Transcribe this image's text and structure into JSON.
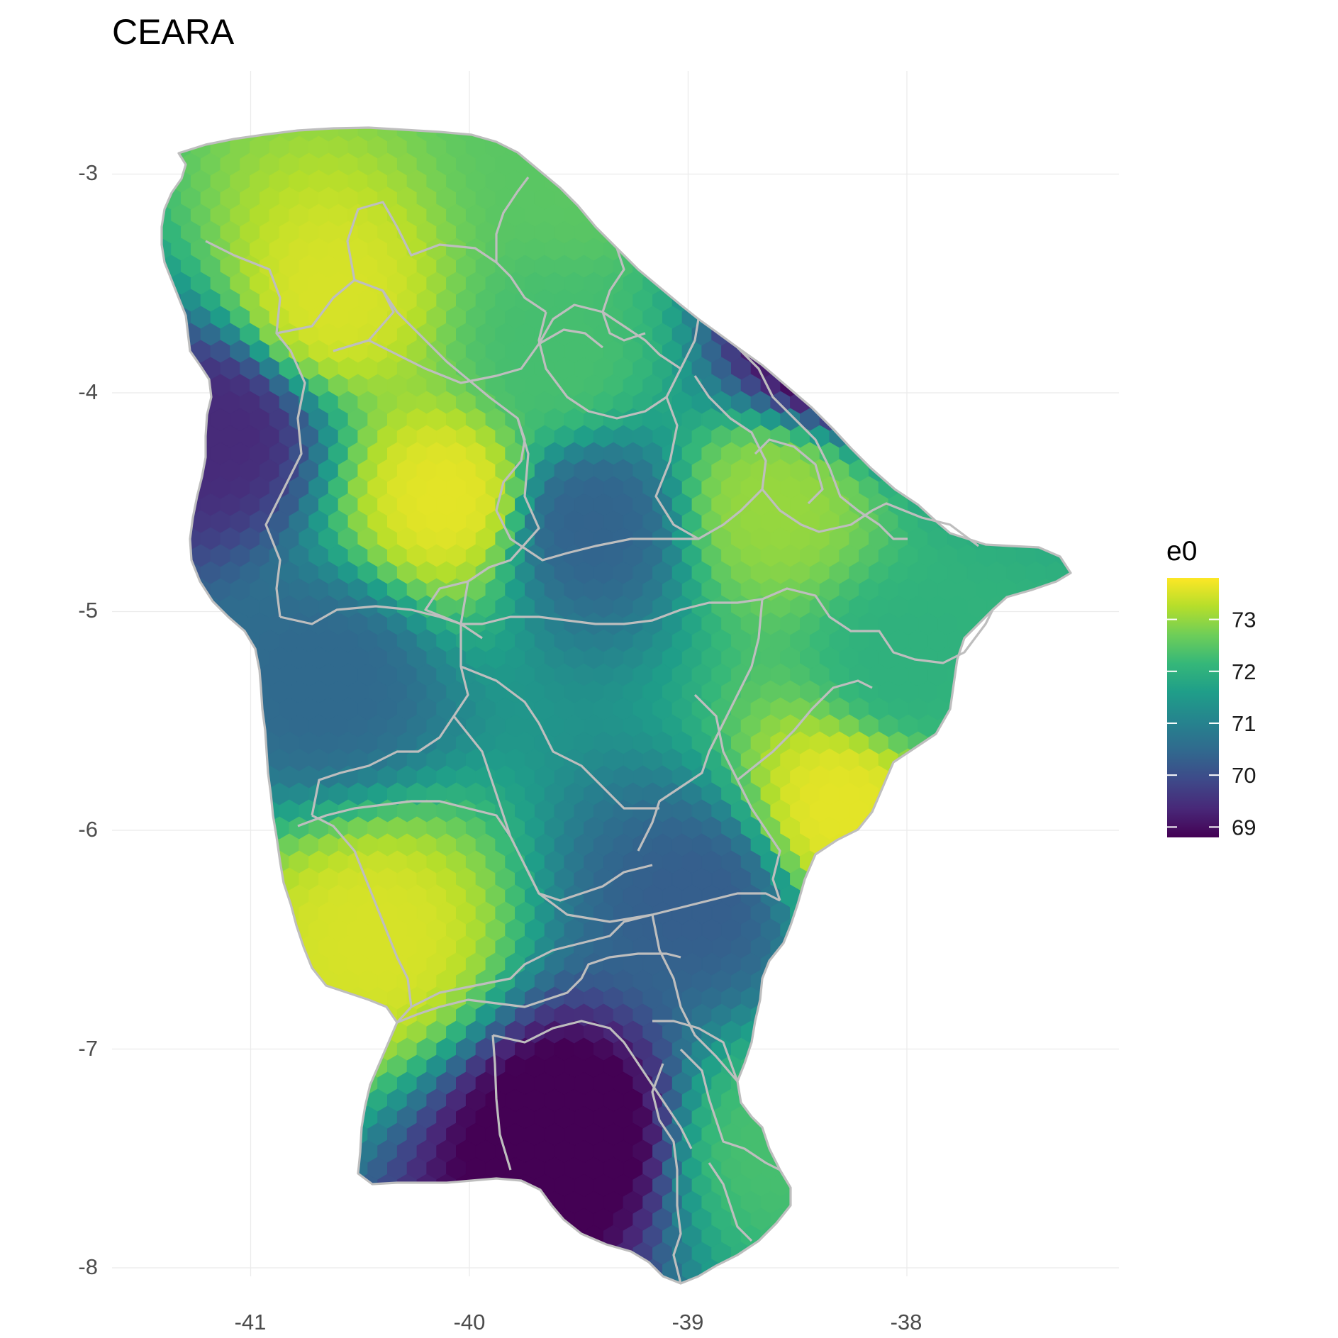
{
  "map": {
    "title": "CEARA",
    "fill_variable": "e0",
    "x_axis": {
      "ticks": [
        -41,
        -40,
        -39,
        -38
      ],
      "tick_labels": [
        "-41",
        "-40",
        "-39",
        "-38"
      ],
      "range": [
        -41.65,
        -37.05
      ]
    },
    "y_axis": {
      "ticks": [
        -3,
        -4,
        -5,
        -6,
        -7,
        -8
      ],
      "tick_labels": [
        "-3",
        "-4",
        "-5",
        "-6",
        "-7",
        "-8"
      ],
      "range": [
        -8.2,
        -2.45
      ]
    },
    "grid": true,
    "colorscale": {
      "name": "viridis",
      "stops": [
        "#440154",
        "#482878",
        "#3e4989",
        "#31688e",
        "#26828e",
        "#1f9e89",
        "#35b779",
        "#6ece58",
        "#b5de2b",
        "#fde725"
      ],
      "range": [
        68.8,
        73.8
      ]
    },
    "legend": {
      "title": "e0",
      "position": "right",
      "ticks": [
        73,
        72,
        71,
        70,
        69
      ],
      "tick_labels": [
        "73",
        "72",
        "71",
        "70",
        "69"
      ]
    },
    "state_border_color": "#bebebe",
    "hotspots": [
      {
        "lon": -40.1,
        "lat": -4.48,
        "value": 73.6
      },
      {
        "lon": -40.63,
        "lat": -3.57,
        "value": 73.5
      },
      {
        "lon": -40.42,
        "lat": -6.5,
        "value": 73.5
      },
      {
        "lon": -38.6,
        "lat": -4.5,
        "value": 73.0
      },
      {
        "lon": -38.3,
        "lat": -5.9,
        "value": 73.6
      },
      {
        "lon": -39.6,
        "lat": -3.85,
        "value": 72.3
      },
      {
        "lon": -39.48,
        "lat": -3.0,
        "value": 72.5
      },
      {
        "lon": -38.35,
        "lat": -3.78,
        "value": 68.7
      },
      {
        "lon": -41.15,
        "lat": -4.18,
        "value": 69.4
      },
      {
        "lon": -39.55,
        "lat": -7.4,
        "value": 68.5
      },
      {
        "lon": -38.95,
        "lat": -6.3,
        "value": 70.3
      },
      {
        "lon": -39.45,
        "lat": -4.6,
        "value": 70.4
      },
      {
        "lon": -40.65,
        "lat": -5.3,
        "value": 70.5
      },
      {
        "lon": -38.6,
        "lat": -7.45,
        "value": 72.3
      },
      {
        "lon": -38.0,
        "lat": -5.25,
        "value": 72.0
      }
    ]
  }
}
